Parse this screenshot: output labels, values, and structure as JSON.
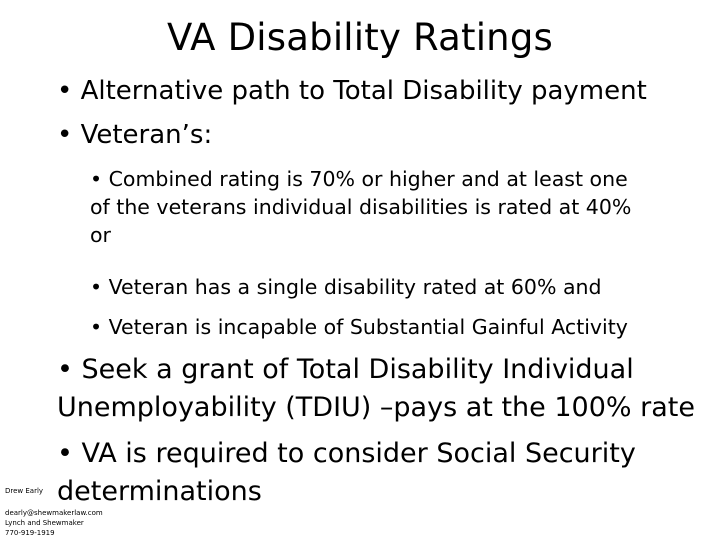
{
  "slide": {
    "title": "VA Disability Ratings",
    "bullets_level1": [
      "• Alternative path to Total Disability payment",
      "• Veteran’s:"
    ],
    "bullets_level2": [
      {
        "lines": [
          "• Combined rating is 70% or higher and at least one",
          "of the veterans individual disabilities is rated at 40%",
          "or"
        ]
      },
      {
        "lines": [
          "• Veteran has a single disability rated at 60% and"
        ]
      },
      {
        "lines": [
          "• Veteran is incapable of Substantial Gainful Activity"
        ]
      }
    ],
    "bullets_large": [
      {
        "lines": [
          "• Seek a grant of Total Disability Individual",
          "Unemployability (TDIU) –pays at the 100% rate"
        ]
      },
      {
        "lines": [
          "• VA is required to consider Social Security",
          "determinations"
        ]
      }
    ]
  },
  "footer": {
    "name": "Drew Early",
    "email": "dearly@shewmakerlaw.com",
    "firm": "Lynch and Shewmaker",
    "phone": "770-919-1919"
  }
}
